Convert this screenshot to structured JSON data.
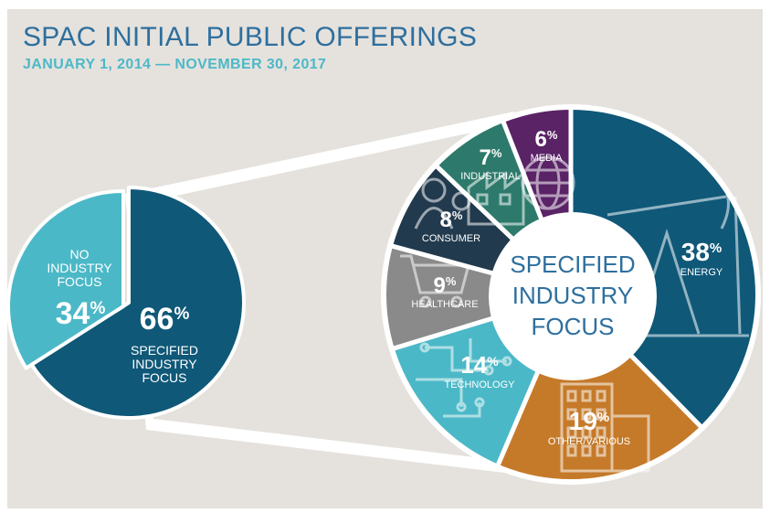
{
  "title": "SPAC INITIAL PUBLIC OFFERINGS",
  "subtitle": "JANUARY 1, 2014 — NOVEMBER 30, 2017",
  "colors": {
    "background": "#e5e2dd",
    "no_focus": "#4bb8c7",
    "specified": "#0f5878",
    "energy": "#0f5878",
    "other": "#c57a2a",
    "technology": "#4bb8c7",
    "healthcare": "#8a8a8a",
    "consumer": "#223a4e",
    "industrial": "#2d7a6c",
    "media": "#5a2366",
    "center_text": "#2e6f9e"
  },
  "chart_data": [
    {
      "type": "pie",
      "slices": [
        {
          "label_lines": [
            "SPECIFIED",
            "INDUSTRY",
            "FOCUS"
          ],
          "value": 66,
          "pct": "66",
          "color": "#0f5878"
        },
        {
          "label_lines": [
            "NO",
            "INDUSTRY",
            "FOCUS"
          ],
          "value": 34,
          "pct": "34",
          "color": "#4bb8c7"
        }
      ]
    },
    {
      "type": "pie",
      "center_label_lines": [
        "SPECIFIED",
        "INDUSTRY",
        "FOCUS"
      ],
      "slices": [
        {
          "label": "ENERGY",
          "value": 38,
          "pct": "38",
          "color": "#0f5878",
          "icon": "oil-pump-icon"
        },
        {
          "label": "OTHER/VARIOUS",
          "value": 19,
          "pct": "19",
          "color": "#c57a2a",
          "icon": "building-icon"
        },
        {
          "label": "TECHNOLOGY",
          "value": 14,
          "pct": "14",
          "color": "#4bb8c7",
          "icon": "circuit-icon"
        },
        {
          "label": "HEALTHCARE",
          "value": 9,
          "pct": "9",
          "color": "#8a8a8a",
          "icon": "shopping-cart-icon"
        },
        {
          "label": "CONSUMER",
          "value": 8,
          "pct": "8",
          "color": "#223a4e",
          "icon": "people-icon"
        },
        {
          "label": "INDUSTRIAL",
          "value": 7,
          "pct": "7",
          "color": "#2d7a6c",
          "icon": "factory-icon"
        },
        {
          "label": "MEDIA",
          "value": 6,
          "pct": "6",
          "color": "#5a2366",
          "icon": "globe-icon"
        }
      ]
    }
  ]
}
